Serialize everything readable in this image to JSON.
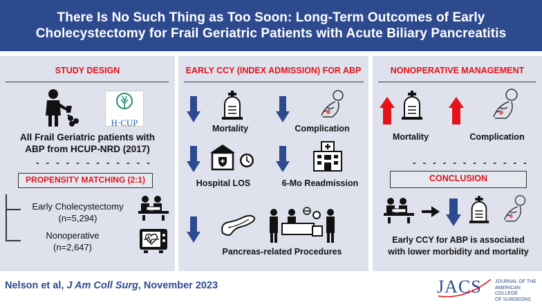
{
  "header": {
    "title_line1": "There Is No Such Thing as Too Soon: Long-Term Outcomes of Early",
    "title_line2": "Cholecystectomy for Frail Geriatric Patients with Acute Biliary Pancreatitis"
  },
  "study_design": {
    "title": "STUDY DESIGN",
    "logo_text": "H·CUP",
    "population_line1": "All Frail Geriatric patients with",
    "population_line2": "ABP from HCUP-NRD (2017)",
    "divider": "- - - - - - - - - - - -",
    "matching_label": "PROPENSITY MATCHING (2:1)",
    "group1_name": "Early Cholecystectomy",
    "group1_n": "(n=5,294)",
    "group2_name": "Nonoperative",
    "group2_n": "(n=2,647)"
  },
  "early_ccy": {
    "title": "EARLY CCY (INDEX ADMISSION) FOR ABP",
    "outcomes": {
      "mortality": "Mortality",
      "complication": "Complication",
      "los": "Hospital LOS",
      "readmission": "6-Mo Readmission",
      "procedures": "Pancreas-related Procedures"
    }
  },
  "nonoperative": {
    "title": "NONOPERATIVE MANAGEMENT",
    "mortality": "Mortality",
    "complication": "Complication",
    "divider": "- - - - - - - - - - - -",
    "conclusion_label": "CONCLUSION",
    "conclusion_line1": "Early CCY for ABP is associated",
    "conclusion_line2": "with lower morbidity and mortality"
  },
  "footer": {
    "authors": "Nelson et al, ",
    "journal": "J Am Coll Surg",
    "date": ", November 2023",
    "jacs_logo": "JACS",
    "jacs_sub1": "JOURNAL OF THE",
    "jacs_sub2": "AMERICAN COLLEGE",
    "jacs_sub3": "OF SURGEONS"
  },
  "colors": {
    "header_bg": "#2e4a8f",
    "panel_bg": "#dfe2ec",
    "accent_red": "#e3121b",
    "arrow_blue": "#2e4a8f"
  }
}
